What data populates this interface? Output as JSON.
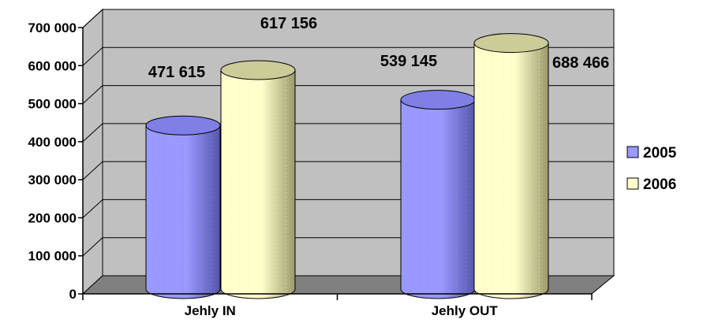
{
  "chart_data": {
    "type": "bar",
    "style": "3d-cylinder",
    "categories": [
      "Jehly IN",
      "Jehly OUT"
    ],
    "series": [
      {
        "name": "2005",
        "values": [
          471615,
          539145
        ],
        "data_labels": [
          "471 615",
          "539 145"
        ],
        "color": "#9999ff"
      },
      {
        "name": "2006",
        "values": [
          617156,
          688466
        ],
        "data_labels": [
          "617 156",
          "688 466"
        ],
        "color": "#ffffcc"
      }
    ],
    "y_ticks": [
      0,
      100000,
      200000,
      300000,
      400000,
      500000,
      600000,
      700000
    ],
    "y_tick_labels": [
      "0",
      "100 000",
      "200 000",
      "300 000",
      "400 000",
      "500 000",
      "600 000",
      "700 000"
    ],
    "ylim": [
      0,
      700000
    ],
    "grid": true,
    "legend": "right",
    "wall_color": "#c0c0c0",
    "floor_color": "#808080"
  }
}
